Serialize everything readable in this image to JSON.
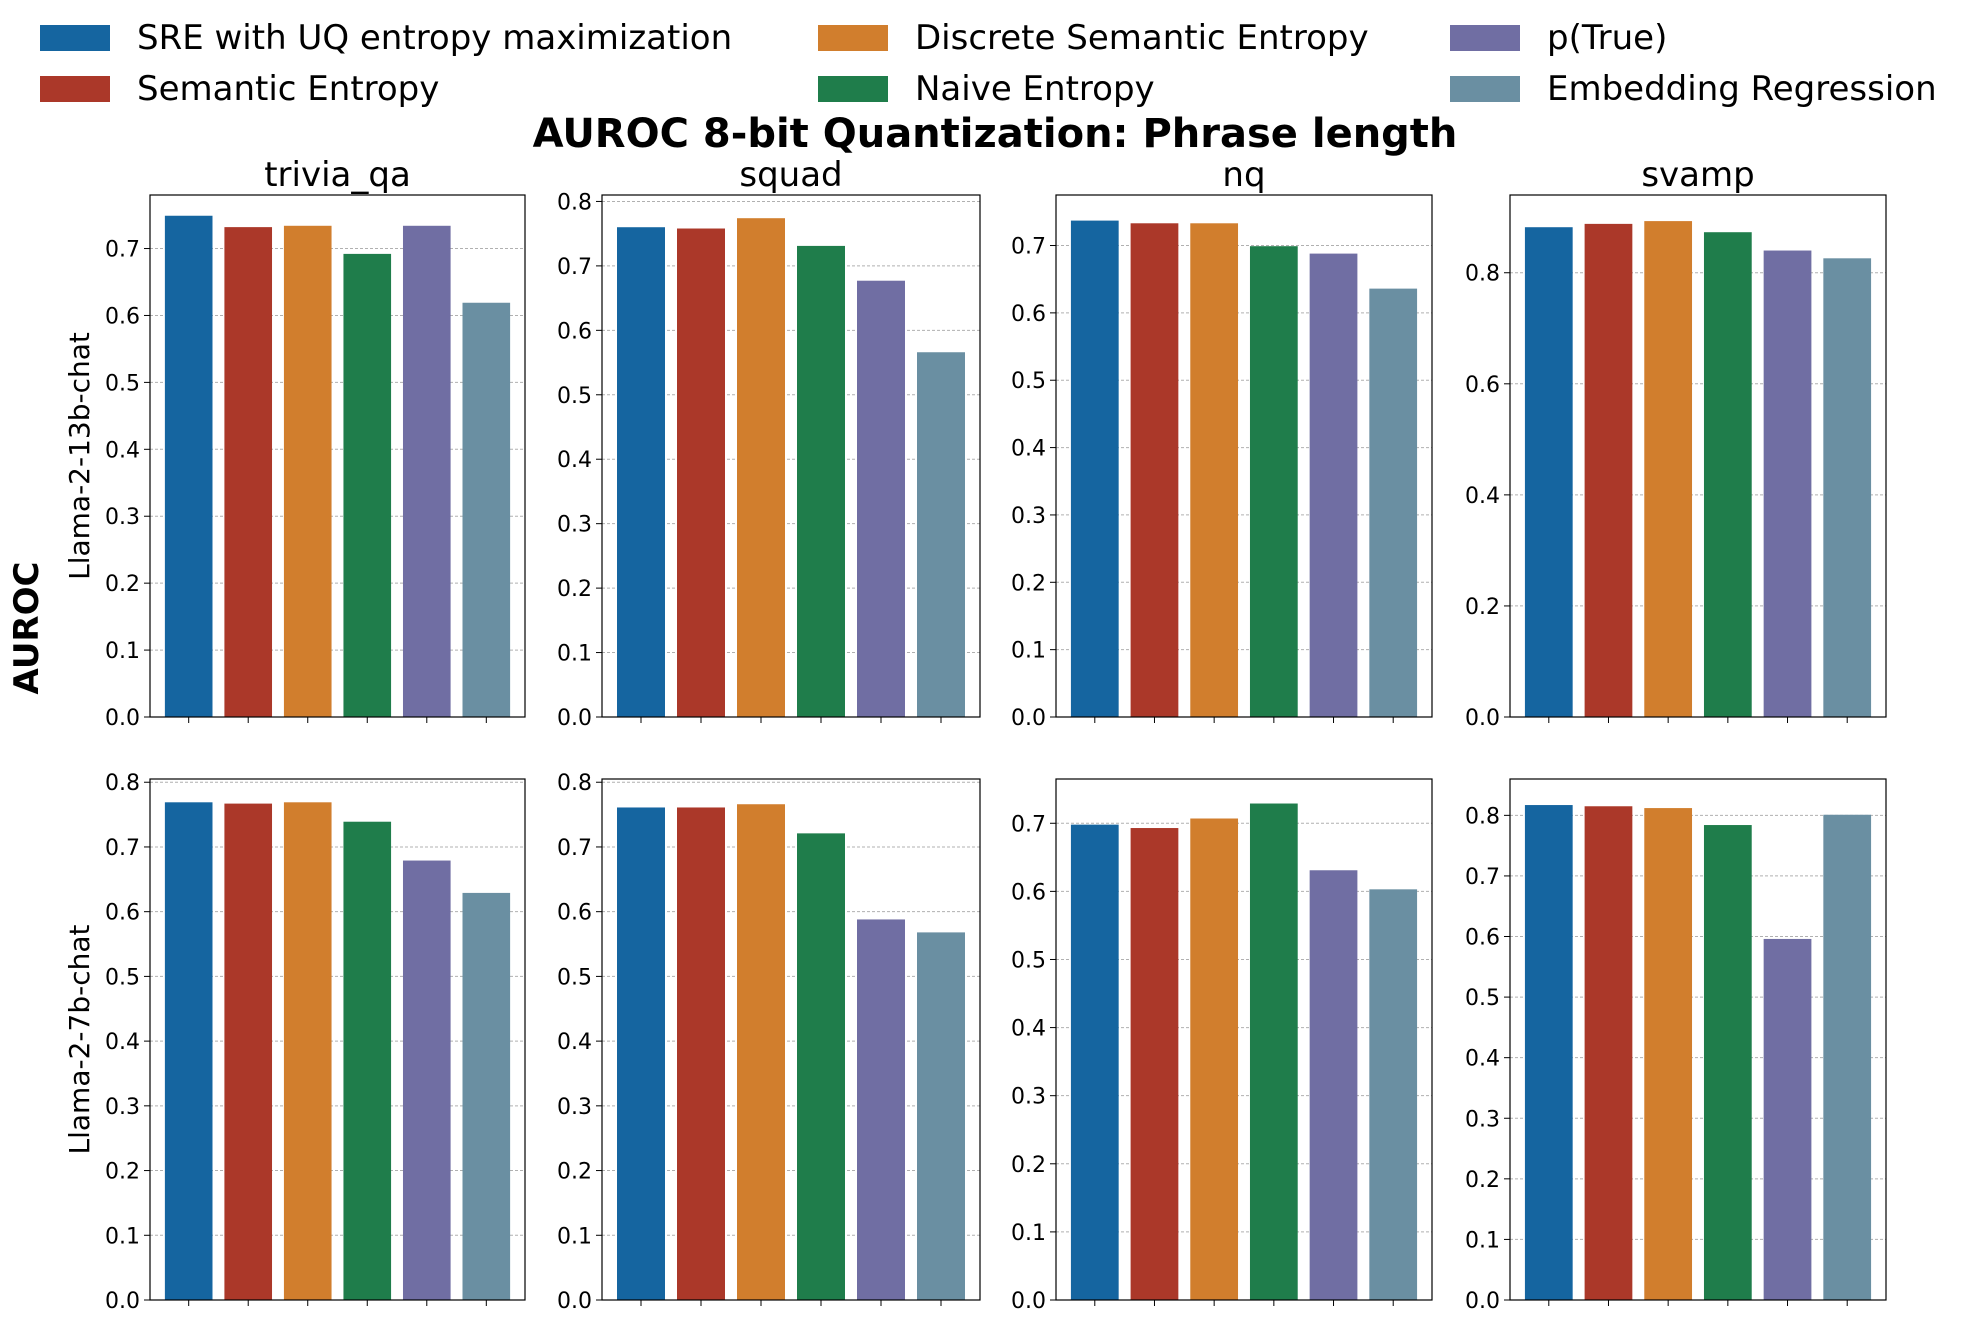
{
  "title": "AUROC 8-bit Quantization: Phrase length",
  "ylabel": "AUROC",
  "legend": [
    {
      "label": "SRE with UQ entropy maximization",
      "color": "#1565a0"
    },
    {
      "label": "Semantic Entropy",
      "color": "#ab3829"
    },
    {
      "label": "Discrete Semantic Entropy",
      "color": "#d17e2d"
    },
    {
      "label": "Naive Entropy",
      "color": "#1f7d4b"
    },
    {
      "label": "p(True)",
      "color": "#706ea3"
    },
    {
      "label": "Embedding Regression",
      "color": "#6a8fa2"
    }
  ],
  "chart_data": [
    {
      "type": "bar",
      "row_label": "Llama-2-13b-chat",
      "title": "trivia_qa",
      "ylim": [
        0,
        0.78
      ],
      "yticks": [
        "0.0",
        "0.1",
        "0.2",
        "0.3",
        "0.4",
        "0.5",
        "0.6",
        "0.7"
      ],
      "values": [
        0.749,
        0.732,
        0.734,
        0.692,
        0.734,
        0.619
      ]
    },
    {
      "type": "bar",
      "row_label": "Llama-2-13b-chat",
      "title": "squad",
      "ylim": [
        0,
        0.81
      ],
      "yticks": [
        "0.0",
        "0.1",
        "0.2",
        "0.3",
        "0.4",
        "0.5",
        "0.6",
        "0.7",
        "0.8"
      ],
      "values": [
        0.76,
        0.758,
        0.774,
        0.731,
        0.677,
        0.566
      ]
    },
    {
      "type": "bar",
      "row_label": "Llama-2-13b-chat",
      "title": "nq",
      "ylim": [
        0,
        0.775
      ],
      "yticks": [
        "0.0",
        "0.1",
        "0.2",
        "0.3",
        "0.4",
        "0.5",
        "0.6",
        "0.7"
      ],
      "values": [
        0.737,
        0.733,
        0.733,
        0.699,
        0.688,
        0.636
      ]
    },
    {
      "type": "bar",
      "row_label": "Llama-2-13b-chat",
      "title": "svamp",
      "ylim": [
        0,
        0.94
      ],
      "yticks": [
        "0.0",
        "0.2",
        "0.4",
        "0.6",
        "0.8"
      ],
      "values": [
        0.882,
        0.888,
        0.893,
        0.873,
        0.84,
        0.826
      ]
    },
    {
      "type": "bar",
      "row_label": "Llama-2-7b-chat",
      "title": "trivia_qa",
      "ylim": [
        0,
        0.805
      ],
      "yticks": [
        "0.0",
        "0.1",
        "0.2",
        "0.3",
        "0.4",
        "0.5",
        "0.6",
        "0.7",
        "0.8"
      ],
      "values": [
        0.769,
        0.767,
        0.769,
        0.739,
        0.679,
        0.629
      ]
    },
    {
      "type": "bar",
      "row_label": "Llama-2-7b-chat",
      "title": "squad",
      "ylim": [
        0,
        0.805
      ],
      "yticks": [
        "0.0",
        "0.1",
        "0.2",
        "0.3",
        "0.4",
        "0.5",
        "0.6",
        "0.7",
        "0.8"
      ],
      "values": [
        0.761,
        0.761,
        0.766,
        0.721,
        0.588,
        0.568
      ]
    },
    {
      "type": "bar",
      "row_label": "Llama-2-7b-chat",
      "title": "nq",
      "ylim": [
        0,
        0.765
      ],
      "yticks": [
        "0.0",
        "0.1",
        "0.2",
        "0.3",
        "0.4",
        "0.5",
        "0.6",
        "0.7"
      ],
      "values": [
        0.698,
        0.693,
        0.707,
        0.729,
        0.631,
        0.603
      ]
    },
    {
      "type": "bar",
      "row_label": "Llama-2-7b-chat",
      "title": "svamp",
      "ylim": [
        0,
        0.86
      ],
      "yticks": [
        "0.0",
        "0.1",
        "0.2",
        "0.3",
        "0.4",
        "0.5",
        "0.6",
        "0.7",
        "0.8"
      ],
      "values": [
        0.817,
        0.815,
        0.812,
        0.784,
        0.596,
        0.801
      ]
    }
  ]
}
